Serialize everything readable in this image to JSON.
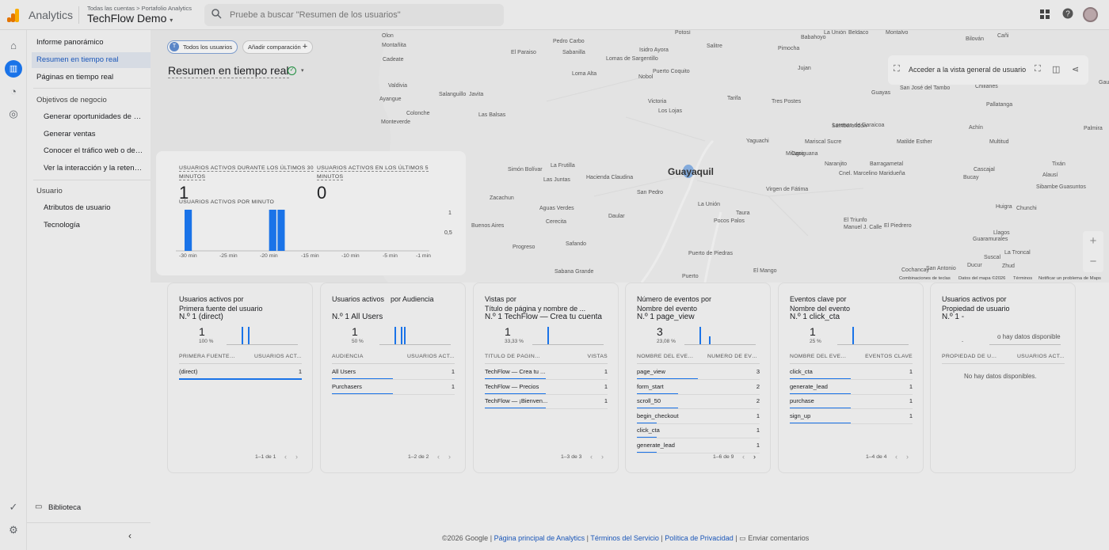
{
  "header": {
    "product": "Analytics",
    "crumb_all": "Todas las cuentas",
    "crumb_sep": ">",
    "crumb_portfolio": "Portafolio Analytics",
    "account": "TechFlow Demo",
    "search_placeholder": "Pruebe a buscar \"Resumen de los usuarios\"",
    "logo_colors": [
      "#f9ab00",
      "#e37400",
      "#e37400"
    ]
  },
  "nav": {
    "items": [
      {
        "label": "Informe panorámico"
      },
      {
        "label": "Resumen en tiempo real"
      },
      {
        "label": "Páginas en tiempo real"
      }
    ],
    "section_business": "Objetivos de negocio",
    "business_items": [
      {
        "label": "Generar oportunidades de ve..."
      },
      {
        "label": "Generar ventas"
      },
      {
        "label": "Conocer el tráfico web o de a..."
      },
      {
        "label": "Ver la interacción y la retenci..."
      }
    ],
    "section_user": "Usuario",
    "user_items": [
      {
        "label": "Atributos de usuario"
      },
      {
        "label": "Tecnología"
      }
    ],
    "library": "Biblioteca"
  },
  "realtime": {
    "chip_user_initial": "T",
    "chip_all_users": "Todos los usuarios",
    "chip_add_compare": "Añadir comparación",
    "title": "Resumen en tiempo real",
    "map_view_label": "Acceder a la vista general de usuario"
  },
  "map": {
    "city": "Guayaquil",
    "labels": [
      "Olon",
      "Montañita",
      "Cadeate",
      "Valdivia",
      "Ayangue",
      "Monteverde",
      "Pedro Carbo",
      "Sabanilla",
      "El Paraiso",
      "Loma Alta",
      "Salanguillo",
      "Javita",
      "Colonche",
      "Las Balsas",
      "Lomas de Sargentillo",
      "Nobol",
      "Isidro Ayora",
      "Puerto Coquito",
      "Potosí",
      "Salitre",
      "Babahoyo",
      "La Unión",
      "Beldaco",
      "Montalvo",
      "Bilován",
      "Cañi",
      "Pimocha",
      "Jujan",
      "Victoria",
      "Los Lojas",
      "Tarifa",
      "Tres Postes",
      "Guayas",
      "San José del Tambo",
      "Chillanes",
      "Pallatanga",
      "Samborondón",
      "Yaguachi",
      "Lorenzo de Garaicoa",
      "Achín",
      "Palmira",
      "Milagro",
      "Mariscal Sucre",
      "Matilde Esther",
      "Multitud",
      "Casiguana",
      "Naranjito",
      "Barragametal",
      "Tixán",
      "Simón Bolívar",
      "La Frutilla",
      "Las Juntas",
      "Hacienda Claudina",
      "San Pedro",
      "Virgen de Fátima",
      "Cnel. Marcelino Maridueña",
      "Bucay",
      "Cascajal",
      "Alausí",
      "Sibambe",
      "Guasuntos",
      "Zacachun",
      "Aguas Verdes",
      "Daular",
      "La Unión",
      "Taura",
      "Pocos Palos",
      "Huigra",
      "Chunchi",
      "Buenos Aires",
      "Cerecita",
      "El Triunfo",
      "Manuel J. Calle",
      "El Piedrero",
      "Llagos",
      "Progreso",
      "Safando",
      "Puerto de Piedras",
      "Guaramurales",
      "La Troncal",
      "Suscal",
      "Sabana Grande",
      "Puerto",
      "El Mango",
      "Cochancay",
      "San Antonio",
      "Ducur",
      "Zhud",
      "Gaumot"
    ],
    "footer": [
      "Combinaciones de teclas",
      "Datos del mapa ©2026",
      "Términos",
      "Notificar un problema de Maps"
    ]
  },
  "active_users": {
    "label_30": "USUARIOS ACTIVOS DURANTE LOS ÚLTIMOS 30 MINUTOS",
    "value_30": "1",
    "label_5": "USUARIOS ACTIVOS EN LOS ÚLTIMOS 5 MINUTOS",
    "value_5": "0",
    "per_minute_label": "USUARIOS ACTIVOS POR MINUTO",
    "y_ticks": [
      "1",
      "0,5"
    ],
    "x_ticks": [
      "-30 min",
      "-25 min",
      "-20 min",
      "-15 min",
      "-10 min",
      "-5 min",
      "-1 min"
    ]
  },
  "chart_data": {
    "type": "bar",
    "title": "USUARIOS ACTIVOS POR MINUTO",
    "categories": [
      "-30",
      "-29",
      "-28",
      "-27",
      "-26",
      "-25",
      "-24",
      "-23",
      "-22",
      "-21",
      "-20",
      "-19",
      "-18",
      "-17",
      "-16",
      "-15",
      "-14",
      "-13",
      "-12",
      "-11",
      "-10",
      "-9",
      "-8",
      "-7",
      "-6",
      "-5",
      "-4",
      "-3",
      "-2",
      "-1"
    ],
    "values": [
      1,
      0,
      0,
      0,
      0,
      0,
      0,
      0,
      0,
      0,
      1,
      1,
      0,
      0,
      0,
      0,
      0,
      0,
      0,
      0,
      0,
      0,
      0,
      0,
      0,
      0,
      0,
      0,
      0,
      0
    ],
    "ylim": [
      0,
      1
    ]
  },
  "cards": [
    {
      "title_a": "Usuarios activos por",
      "title_b": "Primera fuente del usuario",
      "top": "N.º 1  (direct)",
      "value": "1",
      "pct": "100 %",
      "col1": "PRIMERA FUENTE ...",
      "col2": "USUARIOS ACT...",
      "rows": [
        {
          "label": "(direct)",
          "value": "1",
          "frac": 1.0
        }
      ],
      "pager": "1–1 de 1",
      "minibars": [
        0.0,
        0.0,
        0.0,
        0.0,
        1.0,
        0.0,
        1.0,
        0.0
      ]
    },
    {
      "title_a": "Usuarios activos",
      "title_b": "por Audiencia",
      "top": "N.º 1  All Users",
      "value": "1",
      "pct": "50 %",
      "col1": "AUDIENCIA",
      "col2": "USUARIOS ACT...",
      "rows": [
        {
          "label": "All Users",
          "value": "1",
          "frac": 1.0
        },
        {
          "label": "Purchasers",
          "value": "1",
          "frac": 1.0
        }
      ],
      "pager": "1–2 de 2",
      "minibars": [
        0.0,
        0.0,
        0.0,
        0.0,
        1.0,
        0.0,
        1.0,
        1.0
      ]
    },
    {
      "title_a": "Vistas por",
      "title_b": "Título de página y nombre de ...",
      "top": "N.º 1  TechFlow — Crea tu cuenta",
      "value": "1",
      "pct": "33,33 %",
      "col1": "TÍTULO DE PÁGINA ...",
      "col2": "VISTAS",
      "rows": [
        {
          "label": "TechFlow — Crea tu ...",
          "value": "1",
          "frac": 1.0
        },
        {
          "label": "TechFlow — Precios",
          "value": "1",
          "frac": 1.0
        },
        {
          "label": "TechFlow — ¡Bienven...",
          "value": "1",
          "frac": 1.0
        }
      ],
      "pager": "1–3 de 3",
      "minibars": [
        0.0,
        0.0,
        0.0,
        0.0,
        1.0,
        0.0,
        0.0,
        0.0
      ]
    },
    {
      "title_a": "Número de eventos por",
      "title_b": "Nombre del evento",
      "top": "N.º 1  page_view",
      "value": "3",
      "pct": "23,08 %",
      "col1": "NOMBRE DEL EVENT...",
      "col2": "NÚMERO DE EVE...",
      "rows": [
        {
          "label": "page_view",
          "value": "3",
          "frac": 1.0
        },
        {
          "label": "form_start",
          "value": "2",
          "frac": 0.67
        },
        {
          "label": "scroll_50",
          "value": "2",
          "frac": 0.67
        },
        {
          "label": "begin_checkout",
          "value": "1",
          "frac": 0.33
        },
        {
          "label": "click_cta",
          "value": "1",
          "frac": 0.33
        },
        {
          "label": "generate_lead",
          "value": "1",
          "frac": 0.33
        }
      ],
      "pager": "1–6 de 9",
      "minibars": [
        0.0,
        0.0,
        0.0,
        0.0,
        1.0,
        0.0,
        0.0,
        0.45
      ]
    },
    {
      "title_a": "Eventos clave por",
      "title_b": "Nombre del evento",
      "top": "N.º 1  click_cta",
      "value": "1",
      "pct": "25 %",
      "col1": "NOMBRE DEL EVENT...",
      "col2": "EVENTOS CLAVE",
      "rows": [
        {
          "label": "click_cta",
          "value": "1",
          "frac": 1.0
        },
        {
          "label": "generate_lead",
          "value": "1",
          "frac": 1.0
        },
        {
          "label": "purchase",
          "value": "1",
          "frac": 1.0
        },
        {
          "label": "sign_up",
          "value": "1",
          "frac": 1.0
        }
      ],
      "pager": "1–4 de 4",
      "minibars": [
        0.0,
        0.0,
        0.0,
        0.0,
        1.0,
        0.0,
        0.0,
        0.0
      ]
    },
    {
      "title_a": "Usuarios activos por",
      "title_b": "Propiedad de usuario",
      "top": "N.º 1  -",
      "value": "",
      "pct": "-",
      "col1": "PROPIEDAD DE USU...",
      "col2": "USUARIOS ACT...",
      "rows": [],
      "pager": "",
      "nodata_chart": "o hay datos disponible",
      "nodata": "No hay datos disponibles.",
      "minibars": []
    }
  ],
  "footer": {
    "copyright": "©2026 Google",
    "sep": "|",
    "link1": "Página principal de Analytics",
    "link2": "Términos del Servicio",
    "link3": "Política de Privacidad",
    "feedback": "Enviar comentarios"
  },
  "colors": {
    "accent": "#1a73e8",
    "success": "#1e8e3e"
  }
}
